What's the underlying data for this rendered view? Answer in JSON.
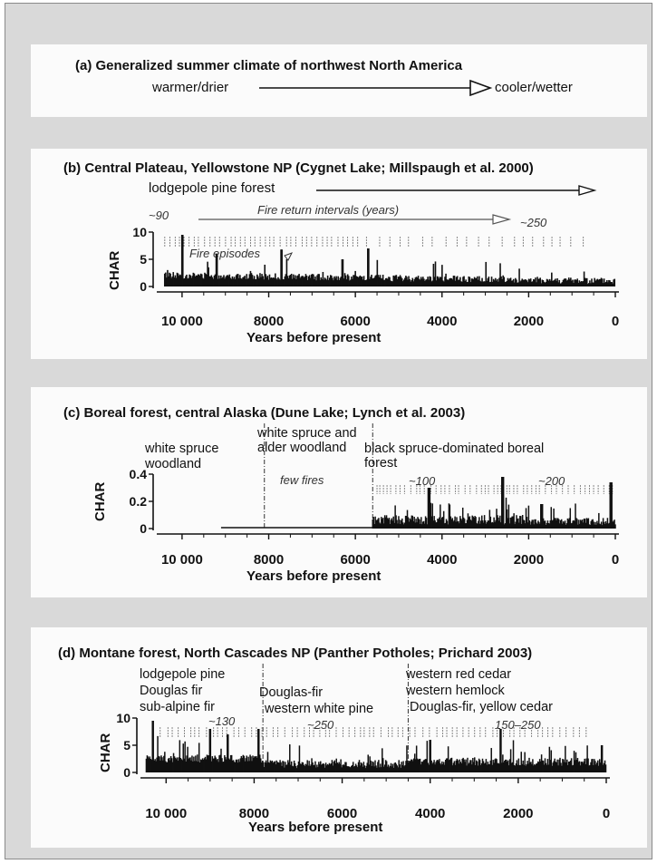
{
  "panel_a": {
    "title": "(a) Generalized summer climate of northwest North America",
    "left_label": "warmer/drier",
    "right_label": "cooler/wetter"
  },
  "axis_title": "Years before present",
  "ylabel": "CHAR",
  "chart_data": [
    {
      "type": "bar",
      "title": "(b) Central Plateau, Yellowstone NP (Cygnet Lake; Millspaugh et al. 2000)",
      "xlabel": "Years before present",
      "ylabel": "CHAR",
      "xlim": [
        10500,
        0
      ],
      "ylim": [
        0,
        10
      ],
      "xticks": [
        "10 000",
        "8000",
        "6000",
        "4000",
        "2000",
        "0"
      ],
      "yticks": [
        "0",
        "5",
        "10"
      ],
      "annotations": {
        "vegetation": "lodgepole pine forest",
        "fire_return_intervals": "Fire return intervals (years)",
        "fri_start": "~90",
        "fri_end": "~250",
        "fire_episodes": "Fire episodes"
      },
      "peaks": [
        {
          "x": 10000,
          "y": 9.5
        },
        {
          "x": 9200,
          "y": 6
        },
        {
          "x": 7700,
          "y": 6.8
        },
        {
          "x": 6300,
          "y": 5
        },
        {
          "x": 5700,
          "y": 7
        }
      ],
      "baseline": {
        "start": 1.5,
        "end": 0.5
      }
    },
    {
      "type": "bar",
      "title": "(c) Boreal forest, central Alaska (Dune Lake; Lynch et al. 2003)",
      "xlabel": "Years before present",
      "ylabel": "CHAR",
      "xlim": [
        10500,
        0
      ],
      "ylim": [
        0,
        0.4
      ],
      "xticks": [
        "10 000",
        "8000",
        "6000",
        "4000",
        "2000",
        "0"
      ],
      "yticks": [
        "0",
        "0.2",
        "0.4"
      ],
      "annotations": {
        "zone1": "white spruce woodland",
        "zone2": "white spruce and alder woodland",
        "zone3": "black spruce-dominated boreal forest",
        "few_fires": "few fires",
        "fri_1": "~100",
        "fri_2": "~200"
      },
      "boundaries": [
        8100,
        5600
      ],
      "peaks": [
        {
          "x": 4300,
          "y": 0.3
        },
        {
          "x": 2600,
          "y": 0.38
        },
        {
          "x": 100,
          "y": 0.34
        },
        {
          "x": 1700,
          "y": 0.18
        }
      ]
    },
    {
      "type": "bar",
      "title": "(d) Montane forest, North Cascades NP (Panther Potholes; Prichard 2003)",
      "xlabel": "Years before present",
      "ylabel": "CHAR",
      "xlim": [
        10500,
        0
      ],
      "ylim": [
        0,
        10
      ],
      "xticks": [
        "10 000",
        "8000",
        "6000",
        "4000",
        "2000",
        "0"
      ],
      "yticks": [
        "0",
        "5",
        "10"
      ],
      "annotations": {
        "zone1_l1": "lodgepole pine",
        "zone1_l2": "Douglas fir",
        "zone1_l3": "sub-alpine fir",
        "zone2_l1": "Douglas-fir",
        "zone2_l2": "western white pine",
        "zone3_l1": "western red cedar",
        "zone3_l2": "western hemlock",
        "zone3_l3": "Douglas-fir, yellow cedar",
        "fri_1": "~130",
        "fri_2": "~250",
        "fri_3": "150–250"
      },
      "boundaries": [
        7800,
        4500
      ],
      "peaks": [
        {
          "x": 10300,
          "y": 9.5
        },
        {
          "x": 9000,
          "y": 8
        },
        {
          "x": 8600,
          "y": 7
        },
        {
          "x": 7900,
          "y": 8
        },
        {
          "x": 4000,
          "y": 6
        },
        {
          "x": 2400,
          "y": 8
        },
        {
          "x": 100,
          "y": 5
        }
      ]
    }
  ]
}
